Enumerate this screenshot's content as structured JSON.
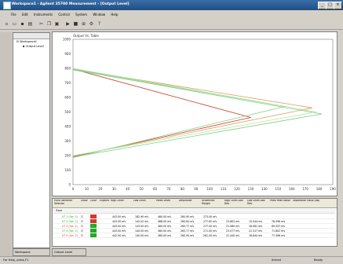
{
  "window": {
    "title": "Workspace1 - Agilent 35700 Measurement - [Output Level]",
    "controls": [
      "_",
      "□",
      "×"
    ]
  },
  "menubar": {
    "items": [
      "File",
      "Edit",
      "Instruments",
      "Control",
      "System",
      "Window",
      "Help"
    ]
  },
  "tree": {
    "root": "Workspace1",
    "child": "Output Level"
  },
  "tabs": {
    "left": "Workspace",
    "bottom": "Output Level"
  },
  "plot": {
    "header": "Output Vs. Table"
  },
  "chart_data": {
    "type": "line",
    "xlim": [
      0,
      190
    ],
    "ylim": [
      0,
      1000
    ],
    "xticks": [
      0,
      10,
      20,
      30,
      40,
      50,
      60,
      70,
      80,
      90,
      100,
      110,
      120,
      130,
      140,
      150,
      160,
      170,
      180,
      190
    ],
    "yticks": [
      0,
      100,
      200,
      300,
      400,
      500,
      600,
      700,
      800,
      900,
      1000
    ],
    "series": [
      {
        "color": "#c83c2a",
        "x": [
          0,
          130,
          0
        ],
        "y": [
          795,
          462,
          192
        ]
      },
      {
        "color": "#e39a5a",
        "x": [
          0,
          175,
          0
        ],
        "y": [
          795,
          528,
          196
        ]
      },
      {
        "color": "#7fcf7f",
        "x": [
          0,
          155,
          0
        ],
        "y": [
          795,
          538,
          186
        ]
      },
      {
        "color": "#7fcf7f",
        "x": [
          0,
          182,
          0
        ],
        "y": [
          790,
          486,
          190
        ]
      },
      {
        "color": "#b2e6b2",
        "x": [
          0,
          178,
          0
        ],
        "y": [
          800,
          500,
          200
        ]
      }
    ]
  },
  "grid": {
    "headers": [
      "Point Identifier Selector",
      "Show",
      "Color",
      "Expand",
      "High Level",
      "Low Level",
      "Mean Level",
      "Amplitude",
      "Undefined Margin",
      "High Level Abs Dev",
      "Low Level Abs Dev",
      "Peak Peak Noise",
      "Separation Ratio (dB)"
    ],
    "groupRow": "Trace",
    "rows": [
      {
        "id": "UT 1 (Ser. 2)",
        "color": "#22aa22",
        "swatch": "#d23a2a",
        "cells": [
          "443.00 mV",
          "182.90 mV",
          "460.00 mV",
          "265.95 mV",
          "273.00 mV",
          "",
          "",
          "",
          ""
        ]
      },
      {
        "id": "UT 2 (Ser. 2)",
        "color": "#22aa22",
        "swatch": "#d23a2a",
        "cells": [
          "443.00 mV",
          "142.02 mV",
          "468.00 mV",
          "260.84 mV",
          "277.82 mV",
          "23.802 mV",
          "15.044 mV",
          "76.596 mV",
          ""
        ]
      },
      {
        "id": "UT 3 (Ser. 2)",
        "color": "#d23a2a",
        "swatch": "#22aa22",
        "cells": [
          "443.00 mV",
          "143.00 mV",
          "460.00 mV",
          "260.77 mV",
          "277.00 mV",
          "21.080 mV",
          "18.081 mV",
          "69.337 mV",
          ""
        ]
      },
      {
        "id": "UT 4 (Ser. 2)",
        "color": "#22aa22",
        "swatch": "#22aa22",
        "cells": [
          "443.00 mV",
          "140.00 mV",
          "460.00 mV",
          "263.77 mV",
          "271.00 mV",
          "23.077 mV",
          "21.317 mV",
          "71.802 mV",
          ""
        ]
      },
      {
        "id": "UT 5 (Ser. 2)",
        "color": "#d23a2a",
        "swatch": "#22aa22",
        "cells": [
          "442.00 mV",
          "140.00 mV",
          "460.00 mV",
          "260.94 mV",
          "261.00 mV",
          "21.440 mV",
          "18.844 mV",
          "77.498 mV",
          ""
        ]
      }
    ]
  },
  "statusbar": {
    "left": "For Help, press F1",
    "mid": "Armed",
    "right": "Ready"
  }
}
